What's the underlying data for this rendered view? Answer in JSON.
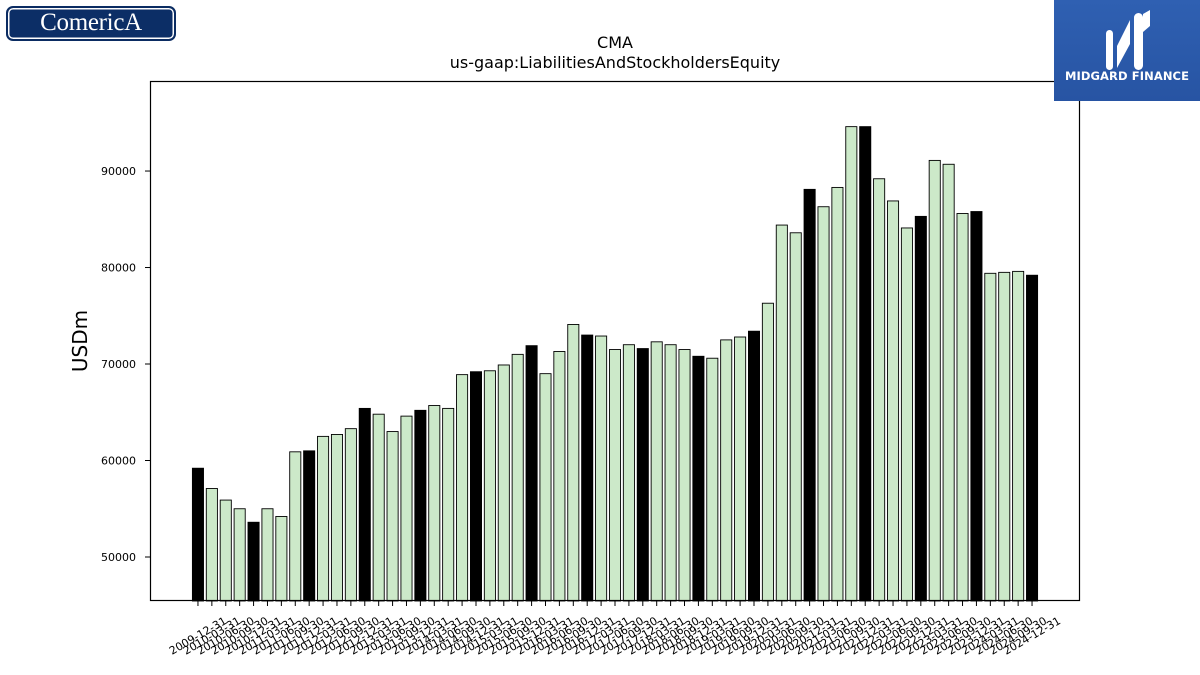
{
  "logos": {
    "left": {
      "text": "ComericA",
      "bg": "#0c2e66"
    },
    "right": {
      "text": "MIDGARD FINANCE",
      "bg": "#2b5aa9",
      "icon": "midgard-m-icon"
    }
  },
  "chart_data": {
    "type": "bar",
    "title": "CMA",
    "subtitle": "us-gaap:LiabilitiesAndStockholdersEquity",
    "xlabel": "",
    "ylabel": "USDm",
    "ylim": [
      45440,
      99330
    ],
    "yticks": [
      50000,
      60000,
      70000,
      80000,
      90000
    ],
    "grid": false,
    "colors": {
      "bar": "#cce9c9",
      "year_end_bar": "#000000",
      "edge": "#000000"
    },
    "categories": [
      "2009-12-31",
      "2010-03-31",
      "2010-06-30",
      "2010-09-30",
      "2010-12-31",
      "2011-03-31",
      "2011-06-30",
      "2011-09-30",
      "2011-12-31",
      "2012-03-31",
      "2012-06-30",
      "2012-09-30",
      "2012-12-31",
      "2013-03-31",
      "2013-06-30",
      "2013-09-30",
      "2013-12-31",
      "2014-03-31",
      "2014-06-30",
      "2014-09-30",
      "2014-12-31",
      "2015-03-31",
      "2015-06-30",
      "2015-09-30",
      "2015-12-31",
      "2016-03-31",
      "2016-06-30",
      "2016-09-30",
      "2016-12-31",
      "2017-03-31",
      "2017-06-30",
      "2017-09-30",
      "2017-12-31",
      "2018-03-31",
      "2018-06-30",
      "2018-09-30",
      "2018-12-31",
      "2019-03-31",
      "2019-06-30",
      "2019-09-30",
      "2019-12-31",
      "2020-03-31",
      "2020-06-30",
      "2020-09-30",
      "2020-12-31",
      "2021-03-31",
      "2021-06-30",
      "2021-09-30",
      "2021-12-31",
      "2022-03-31",
      "2022-06-30",
      "2022-09-30",
      "2022-12-31",
      "2023-03-31",
      "2023-06-30",
      "2023-09-30",
      "2023-12-31",
      "2024-03-31",
      "2024-06-30",
      "2024-09-30",
      "2024-12-31"
    ],
    "values": [
      59200,
      57100,
      55900,
      55000,
      53600,
      55000,
      54200,
      60900,
      61000,
      62500,
      62700,
      63300,
      65400,
      64800,
      63000,
      64600,
      65200,
      65700,
      65400,
      68900,
      69200,
      69300,
      69900,
      71000,
      71900,
      69000,
      71300,
      74100,
      73000,
      72900,
      71500,
      72000,
      71600,
      72300,
      72000,
      71500,
      70800,
      70600,
      72500,
      72800,
      73400,
      76300,
      84400,
      83600,
      88100,
      86300,
      88300,
      94600,
      94600,
      89200,
      86900,
      84100,
      85300,
      91100,
      90700,
      85600,
      85800,
      79400,
      79500,
      79600,
      79200
    ]
  }
}
